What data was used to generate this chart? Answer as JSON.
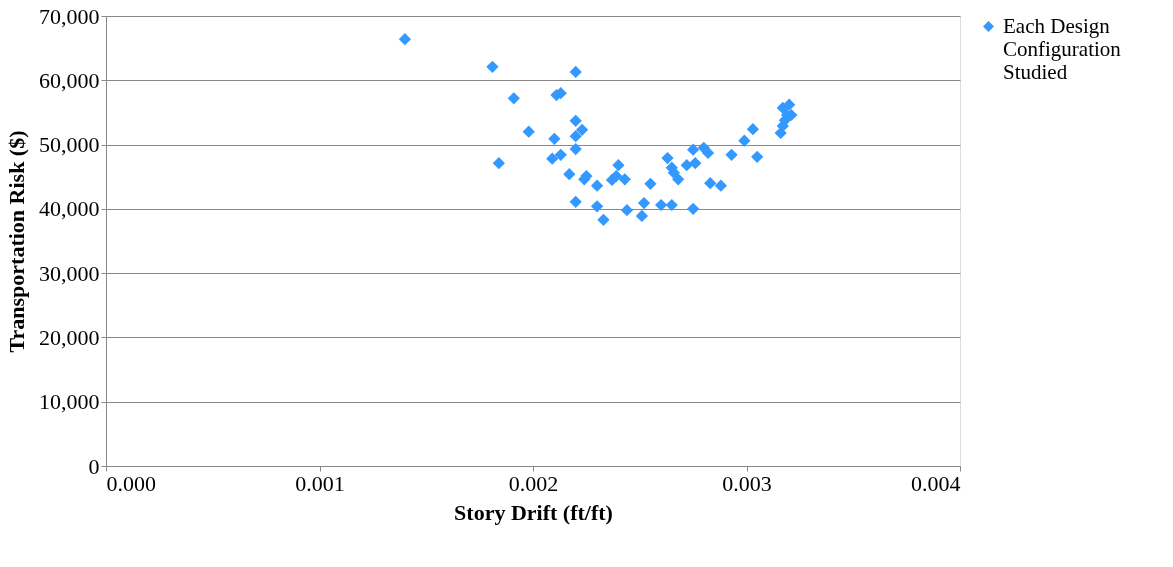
{
  "chart_data": {
    "type": "scatter",
    "xlabel": "Story Drift (ft/ft)",
    "ylabel": "Transportation Risk ($)",
    "xlim": [
      0,
      0.004
    ],
    "xticks": [
      {
        "value": 0,
        "label": "0.000"
      },
      {
        "value": 0.001,
        "label": "0.001"
      },
      {
        "value": 0.002,
        "label": "0.002"
      },
      {
        "value": 0.003,
        "label": "0.003"
      },
      {
        "value": 0.004,
        "label": "0.004"
      }
    ],
    "ylim": [
      0,
      70000
    ],
    "yticks": [
      {
        "value": 0,
        "label": "0"
      },
      {
        "value": 10000,
        "label": "10,000"
      },
      {
        "value": 20000,
        "label": "20,000"
      },
      {
        "value": 30000,
        "label": "30,000"
      },
      {
        "value": 40000,
        "label": "40,000"
      },
      {
        "value": 50000,
        "label": "50,000"
      },
      {
        "value": 60000,
        "label": "60,000"
      },
      {
        "value": 70000,
        "label": "70,000"
      }
    ],
    "grid": "y",
    "legend": "right",
    "marker": "diamond",
    "series": [
      {
        "name": "Each Design Configuration Studied",
        "color": "#3399ff",
        "x": [
          0.0014,
          0.00181,
          0.0022,
          0.00191,
          0.00211,
          0.00213,
          0.00198,
          0.0021,
          0.0022,
          0.00223,
          0.0022,
          0.0022,
          0.00184,
          0.00209,
          0.00213,
          0.00217,
          0.00224,
          0.00225,
          0.0022,
          0.0023,
          0.0023,
          0.00233,
          0.00237,
          0.00239,
          0.0024,
          0.00243,
          0.00244,
          0.00252,
          0.00255,
          0.00251,
          0.0026,
          0.00263,
          0.00265,
          0.00266,
          0.00268,
          0.00265,
          0.00275,
          0.00272,
          0.00276,
          0.0028,
          0.00282,
          0.00283,
          0.00288,
          0.00293,
          0.00299,
          0.00303,
          0.00305,
          0.00275,
          0.00316,
          0.00317,
          0.00318,
          0.00319,
          0.00317,
          0.0032,
          0.00321
        ],
        "values": [
          66400,
          62100,
          61300,
          57200,
          57700,
          58000,
          52000,
          50900,
          53700,
          52300,
          51300,
          49300,
          47100,
          47800,
          48400,
          45400,
          44600,
          45100,
          41100,
          43600,
          40400,
          38300,
          44500,
          45100,
          46800,
          44600,
          39800,
          40900,
          43900,
          38900,
          40600,
          47900,
          46400,
          45600,
          44600,
          40600,
          49200,
          46800,
          47100,
          49500,
          48700,
          44000,
          43600,
          48400,
          50600,
          52400,
          48100,
          40000,
          51800,
          52900,
          53800,
          54600,
          55700,
          56200,
          54600
        ]
      }
    ]
  }
}
